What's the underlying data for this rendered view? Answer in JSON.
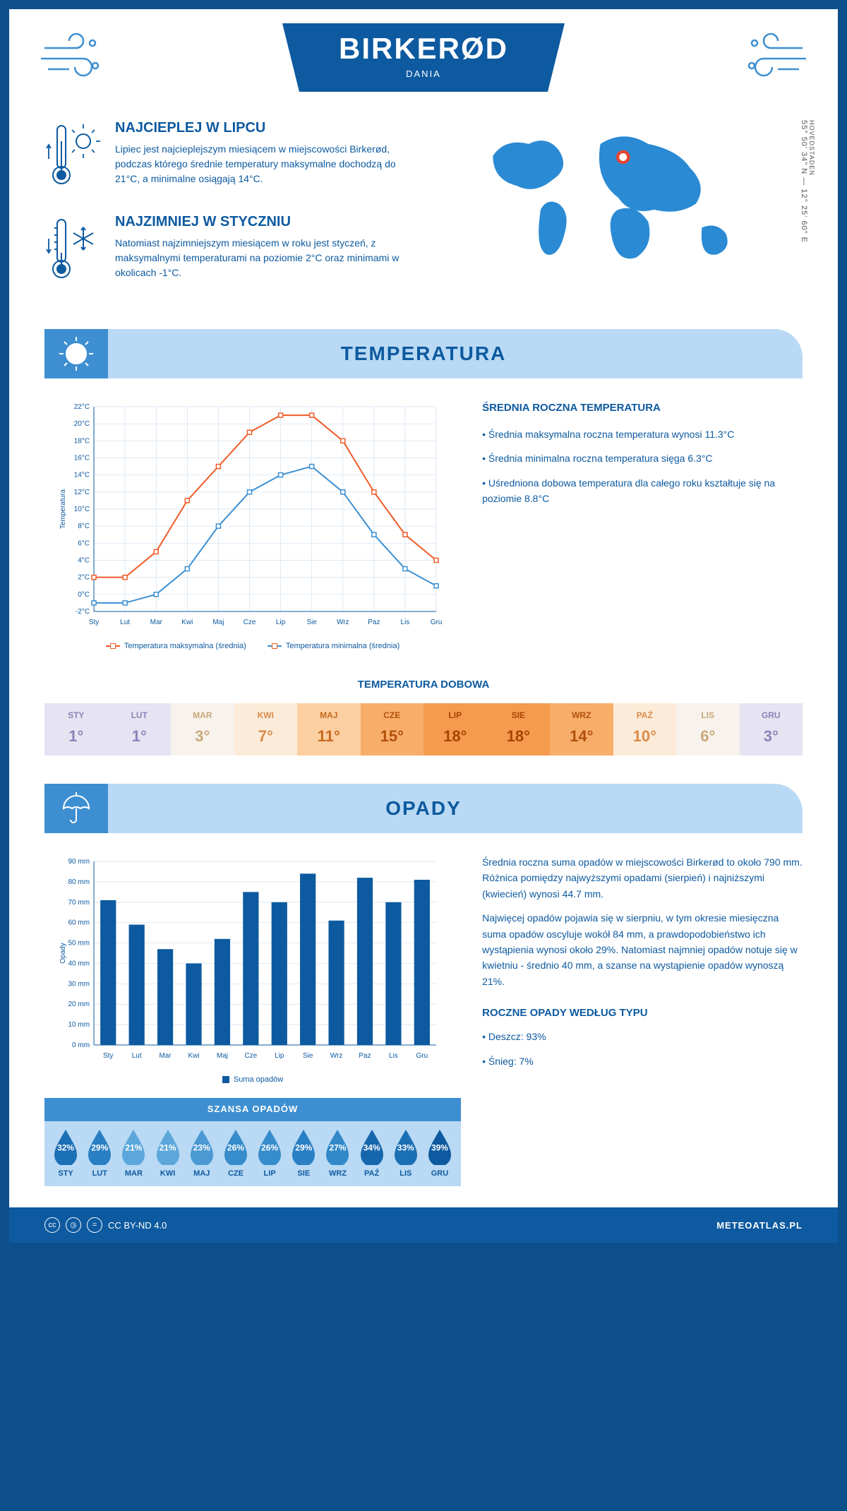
{
  "header": {
    "city": "BIRKERØD",
    "country": "DANIA"
  },
  "coords": {
    "region": "HOVEDSTADEN",
    "lat": "55° 50' 34\" N",
    "lon": "12° 25' 60\" E"
  },
  "facts": {
    "hot": {
      "title": "NAJCIEPLEJ W LIPCU",
      "text": "Lipiec jest najcieplejszym miesiącem w miejscowości Birkerød, podczas którego średnie temperatury maksymalne dochodzą do 21°C, a minimalne osiągają 14°C."
    },
    "cold": {
      "title": "NAJZIMNIEJ W STYCZNIU",
      "text": "Natomiast najzimniejszym miesiącem w roku jest styczeń, z maksymalnymi temperaturami na poziomie 2°C oraz minimami w okolicach -1°C."
    }
  },
  "temp_section": {
    "title": "TEMPERATURA",
    "chart": {
      "type": "line",
      "months": [
        "Sty",
        "Lut",
        "Mar",
        "Kwi",
        "Maj",
        "Cze",
        "Lip",
        "Sie",
        "Wrz",
        "Paz",
        "Lis",
        "Gru"
      ],
      "y_label": "Temperatura",
      "y_min": -2,
      "y_max": 22,
      "y_step": 2,
      "series": [
        {
          "name": "Temperatura maksymalna (średnia)",
          "color": "#f05a28",
          "values": [
            2,
            2,
            5,
            11,
            15,
            19,
            21,
            21,
            18,
            12,
            7,
            4
          ]
        },
        {
          "name": "Temperatura minimalna (średnia)",
          "color": "#3d8fd1",
          "values": [
            -1,
            -1,
            0,
            3,
            8,
            12,
            14,
            15,
            12,
            7,
            3,
            1
          ]
        }
      ],
      "grid_color": "#d0dff0",
      "axis_color": "#0d5aa0"
    },
    "info": {
      "title": "ŚREDNIA ROCZNA TEMPERATURA",
      "bullets": [
        "• Średnia maksymalna roczna temperatura wynosi 11.3°C",
        "• Średnia minimalna roczna temperatura sięga 6.3°C",
        "• Uśredniona dobowa temperatura dla całego roku kształtuje się na poziomie 8.8°C"
      ]
    },
    "daily": {
      "title": "TEMPERATURA DOBOWA",
      "months": [
        "STY",
        "LUT",
        "MAR",
        "KWI",
        "MAJ",
        "CZE",
        "LIP",
        "SIE",
        "WRZ",
        "PAŹ",
        "LIS",
        "GRU"
      ],
      "values": [
        "1°",
        "1°",
        "3°",
        "7°",
        "11°",
        "15°",
        "18°",
        "18°",
        "14°",
        "10°",
        "6°",
        "3°"
      ],
      "bg_colors": [
        "#e6e4f2",
        "#e6e4f2",
        "#f7f2ec",
        "#fcebd8",
        "#fbcfa2",
        "#f8ad6a",
        "#f59b4e",
        "#f59b4e",
        "#f8ad6a",
        "#fcebd8",
        "#f7f2ec",
        "#e6e4f2"
      ],
      "text_colors": [
        "#8a84b8",
        "#8a84b8",
        "#c9a87a",
        "#d98b4a",
        "#c96a1f",
        "#b0500a",
        "#a84400",
        "#a84400",
        "#b0500a",
        "#d98b4a",
        "#c9a87a",
        "#8a84b8"
      ]
    }
  },
  "rain_section": {
    "title": "OPADY",
    "chart": {
      "type": "bar",
      "months": [
        "Sty",
        "Lut",
        "Mar",
        "Kwi",
        "Maj",
        "Cze",
        "Lip",
        "Sie",
        "Wrz",
        "Paz",
        "Lis",
        "Gru"
      ],
      "y_label": "Opady",
      "y_min": 0,
      "y_max": 90,
      "y_step": 10,
      "values": [
        71,
        59,
        47,
        40,
        52,
        75,
        70,
        84,
        61,
        82,
        70,
        81
      ],
      "bar_color": "#0d5aa0",
      "grid_color": "#d0dff0",
      "legend": "Suma opadów"
    },
    "info": {
      "para1": "Średnia roczna suma opadów w miejscowości Birkerød to około 790 mm. Różnica pomiędzy najwyższymi opadami (sierpień) i najniższymi (kwiecień) wynosi 44.7 mm.",
      "para2": "Najwięcej opadów pojawia się w sierpniu, w tym okresie miesięczna suma opadów oscyluje wokół 84 mm, a prawdopodobieństwo ich wystąpienia wynosi około 29%. Natomiast najmniej opadów notuje się w kwietniu - średnio 40 mm, a szanse na wystąpienie opadów wynoszą 21%."
    },
    "chance": {
      "title": "SZANSA OPADÓW",
      "months": [
        "STY",
        "LUT",
        "MAR",
        "KWI",
        "MAJ",
        "CZE",
        "LIP",
        "SIE",
        "WRZ",
        "PAŹ",
        "LIS",
        "GRU"
      ],
      "values": [
        "32%",
        "29%",
        "21%",
        "21%",
        "23%",
        "26%",
        "26%",
        "29%",
        "27%",
        "34%",
        "33%",
        "39%"
      ],
      "colors": [
        "#1b6fb5",
        "#2a7fc4",
        "#5ba7db",
        "#5ba7db",
        "#4a99d3",
        "#378ccb",
        "#378ccb",
        "#2a7fc4",
        "#3088c8",
        "#1566ad",
        "#1b6fb5",
        "#0d5aa0"
      ]
    },
    "types": {
      "title": "ROCZNE OPADY WEDŁUG TYPU",
      "bullets": [
        "• Deszcz: 93%",
        "• Śnieg: 7%"
      ]
    }
  },
  "footer": {
    "license": "CC BY-ND 4.0",
    "site": "METEOATLAS.PL"
  }
}
